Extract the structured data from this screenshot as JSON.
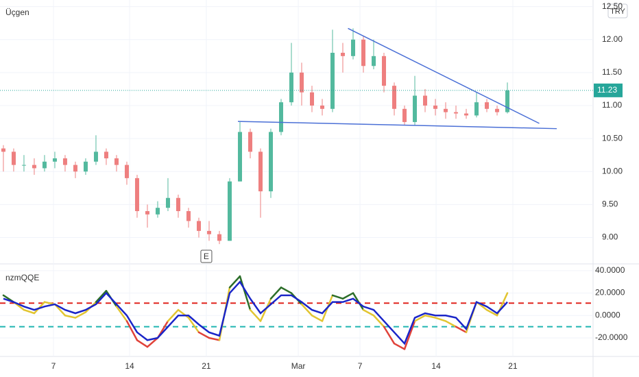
{
  "chart_data": [
    {
      "type": "candlestick",
      "title": "Üçgen",
      "currency": "TRY",
      "up_color": "#53b99e",
      "down_color": "#ee7f7f",
      "xlim": [
        -0.33,
        57.33
      ],
      "ylim": [
        8.6,
        12.6
      ],
      "xticks": [
        {
          "value": 4.87,
          "label": "7"
        },
        {
          "value": 12.27,
          "label": "14"
        },
        {
          "value": 19.73,
          "label": "21"
        },
        {
          "value": 28.67,
          "label": "Mar"
        },
        {
          "value": 34.67,
          "label": "7"
        },
        {
          "value": 42.07,
          "label": "14"
        },
        {
          "value": 49.53,
          "label": "21"
        }
      ],
      "yticks": [
        {
          "value": 9,
          "label": "9.00"
        },
        {
          "value": 9.5,
          "label": "9.50"
        },
        {
          "value": 10,
          "label": "10.00"
        },
        {
          "value": 10.5,
          "label": "10.50"
        },
        {
          "value": 11,
          "label": "11.00"
        },
        {
          "value": 11.5,
          "label": "11.50"
        },
        {
          "value": 12,
          "label": "12.00"
        },
        {
          "value": 12.5,
          "label": "12.50"
        }
      ],
      "last_price": 11.23,
      "last_color": "#26a69a",
      "event": {
        "x": 19.73,
        "label": "E"
      },
      "trendline_color": "#4a6fd6",
      "trendlines": [
        [
          [
            22.8,
            10.76
          ],
          [
            53.8,
            10.65
          ]
        ],
        [
          [
            33.5,
            12.17
          ],
          [
            52.1,
            10.73
          ]
        ]
      ],
      "bars": [
        [
          10.35,
          10.4,
          10.0,
          10.3
        ],
        [
          10.3,
          10.35,
          10.0,
          10.1
        ],
        [
          10.1,
          10.25,
          10.0,
          10.1
        ],
        [
          10.1,
          10.2,
          9.95,
          10.05
        ],
        [
          10.05,
          10.25,
          10.0,
          10.15
        ],
        [
          10.15,
          10.3,
          10.05,
          10.2
        ],
        [
          10.2,
          10.25,
          10.0,
          10.1
        ],
        [
          10.1,
          10.15,
          9.9,
          10.0
        ],
        [
          10.0,
          10.2,
          9.95,
          10.15
        ],
        [
          10.15,
          10.55,
          10.1,
          10.3
        ],
        [
          10.3,
          10.35,
          10.1,
          10.2
        ],
        [
          10.2,
          10.25,
          10.0,
          10.1
        ],
        [
          10.1,
          10.15,
          9.8,
          9.9
        ],
        [
          9.9,
          9.95,
          9.3,
          9.4
        ],
        [
          9.4,
          9.5,
          9.15,
          9.35
        ],
        [
          9.35,
          9.55,
          9.3,
          9.45
        ],
        [
          9.45,
          9.9,
          9.4,
          9.6
        ],
        [
          9.6,
          9.65,
          9.3,
          9.4
        ],
        [
          9.4,
          9.45,
          9.15,
          9.25
        ],
        [
          9.25,
          9.3,
          9.0,
          9.1
        ],
        [
          9.1,
          9.25,
          8.95,
          9.05
        ],
        [
          9.05,
          9.1,
          8.9,
          8.95
        ],
        [
          8.95,
          9.9,
          8.95,
          9.85
        ],
        [
          9.85,
          10.75,
          9.85,
          10.6
        ],
        [
          10.6,
          10.65,
          10.2,
          10.3
        ],
        [
          10.3,
          10.35,
          9.3,
          9.7
        ],
        [
          9.7,
          10.65,
          9.6,
          10.6
        ],
        [
          10.6,
          11.1,
          10.55,
          11.05
        ],
        [
          11.05,
          11.95,
          11.0,
          11.5
        ],
        [
          11.5,
          11.65,
          11.0,
          11.2
        ],
        [
          11.2,
          11.3,
          10.9,
          11.0
        ],
        [
          11.0,
          11.1,
          10.85,
          10.95
        ],
        [
          10.95,
          12.15,
          10.9,
          11.8
        ],
        [
          11.8,
          11.95,
          11.5,
          11.75
        ],
        [
          11.75,
          12.17,
          11.7,
          12.0
        ],
        [
          12.0,
          12.05,
          11.5,
          11.6
        ],
        [
          11.6,
          12.0,
          11.55,
          11.75
        ],
        [
          11.75,
          11.8,
          11.2,
          11.3
        ],
        [
          11.3,
          11.35,
          10.85,
          10.95
        ],
        [
          10.95,
          11.0,
          10.7,
          10.75
        ],
        [
          10.75,
          11.45,
          10.7,
          11.15
        ],
        [
          11.15,
          11.25,
          10.9,
          11.0
        ],
        [
          11.0,
          11.1,
          10.85,
          10.95
        ],
        [
          10.95,
          11.05,
          10.8,
          10.9
        ],
        [
          10.9,
          11.0,
          10.8,
          10.88
        ],
        [
          10.88,
          10.95,
          10.8,
          10.85
        ],
        [
          10.85,
          11.2,
          10.82,
          11.05
        ],
        [
          11.05,
          11.1,
          10.9,
          10.95
        ],
        [
          10.95,
          11.0,
          10.85,
          10.9
        ],
        [
          10.9,
          11.35,
          10.88,
          11.23
        ]
      ]
    },
    {
      "type": "line",
      "title": "nzmQQE",
      "xlim": [
        -0.33,
        57.33
      ],
      "ylim": [
        -36.5,
        46
      ],
      "yticks": [
        {
          "value": -20,
          "label": "-20.0000"
        },
        {
          "value": 0,
          "label": "0.0000"
        },
        {
          "value": 20,
          "label": "20.0000"
        },
        {
          "value": 40,
          "label": "40.0000"
        }
      ],
      "upper": 11,
      "lower": -10,
      "upper_color": "#e0221b",
      "lower_color": "#1fb5b0",
      "fast_colors": {
        "mid": "#e2c531",
        "up": "#2c6e2a",
        "down": "#e0423a"
      },
      "series": [
        {
          "color": "#e2c531",
          "values": [
            18,
            12,
            5,
            2,
            12,
            10,
            0,
            -2,
            3,
            12,
            22,
            8,
            -5,
            -22,
            -28,
            -20,
            -5,
            5,
            -2,
            -15,
            -20,
            -22,
            25,
            35,
            5,
            -5,
            15,
            25,
            20,
            10,
            0,
            -5,
            18,
            15,
            20,
            5,
            0,
            -10,
            -25,
            -30,
            -5,
            0,
            -2,
            -5,
            -10,
            -15,
            12,
            5,
            0,
            20
          ]
        },
        {
          "color": "#1a25c8",
          "values": [
            15,
            12,
            8,
            5,
            8,
            10,
            5,
            2,
            5,
            10,
            20,
            10,
            0,
            -15,
            -22,
            -20,
            -10,
            0,
            0,
            -8,
            -15,
            -18,
            20,
            30,
            15,
            2,
            10,
            18,
            18,
            12,
            5,
            2,
            12,
            12,
            15,
            8,
            5,
            -5,
            -15,
            -25,
            -2,
            2,
            0,
            0,
            -2,
            -12,
            12,
            8,
            2,
            12
          ]
        }
      ]
    }
  ]
}
